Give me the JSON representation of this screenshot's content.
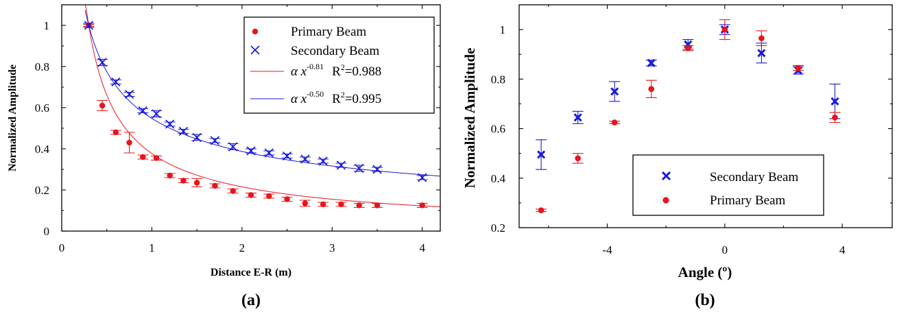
{
  "chart_data": [
    {
      "panel": "(a)",
      "type": "scatter",
      "xlabel": "Distance E-R (m)",
      "ylabel": "Normalized Amplitude",
      "xlim": [
        0,
        4.2
      ],
      "ylim": [
        0,
        1.1
      ],
      "xticks": [
        0,
        1,
        2,
        3,
        4
      ],
      "yticks": [
        0,
        0.2,
        0.4,
        0.6,
        0.8,
        1
      ],
      "legend_position": "top-right",
      "grid": false,
      "series": [
        {
          "name": "Primary Beam",
          "marker": "dot",
          "color": "#e8141b",
          "x": [
            0.3,
            0.45,
            0.6,
            0.75,
            0.9,
            1.05,
            1.2,
            1.35,
            1.5,
            1.7,
            1.9,
            2.1,
            2.3,
            2.5,
            2.7,
            2.9,
            3.1,
            3.3,
            3.5,
            4.0
          ],
          "y": [
            1.0,
            0.61,
            0.48,
            0.43,
            0.36,
            0.355,
            0.27,
            0.245,
            0.235,
            0.22,
            0.195,
            0.175,
            0.17,
            0.155,
            0.135,
            0.13,
            0.13,
            0.125,
            0.125,
            0.125
          ],
          "yerr": [
            0.005,
            0.025,
            0.01,
            0.05,
            0.01,
            0.01,
            0.01,
            0.01,
            0.02,
            0.01,
            0.01,
            0.01,
            0.01,
            0.01,
            0.015,
            0.01,
            0.01,
            0.01,
            0.01,
            0.01
          ]
        },
        {
          "name": "Secondary Beam",
          "marker": "x",
          "color": "#1a1ad6",
          "x": [
            0.3,
            0.45,
            0.6,
            0.75,
            0.9,
            1.05,
            1.2,
            1.35,
            1.5,
            1.7,
            1.9,
            2.1,
            2.3,
            2.5,
            2.7,
            2.9,
            3.1,
            3.3,
            3.5,
            4.0
          ],
          "y": [
            1.0,
            0.82,
            0.725,
            0.665,
            0.585,
            0.57,
            0.52,
            0.485,
            0.455,
            0.44,
            0.41,
            0.39,
            0.38,
            0.365,
            0.35,
            0.34,
            0.32,
            0.305,
            0.3,
            0.26
          ],
          "yerr": [
            0.01,
            0.015,
            0.01,
            0.01,
            0.01,
            0.015,
            0.01,
            0.01,
            0.015,
            0.01,
            0.015,
            0.01,
            0.01,
            0.01,
            0.01,
            0.01,
            0.01,
            0.015,
            0.01,
            0.01
          ]
        },
        {
          "name": "Primary fit",
          "type": "line",
          "color": "#e8141b",
          "model": "power",
          "exponent": -0.81,
          "anchor_x": 0.3,
          "anchor_y": 1.0,
          "legend_label": "α x",
          "legend_exp": "-0.81",
          "r2_label": "R",
          "r2_sup": "2",
          "r2_value": "=0.988"
        },
        {
          "name": "Secondary fit",
          "type": "line",
          "color": "#1a1ad6",
          "model": "power",
          "exponent": -0.5,
          "anchor_x": 0.3,
          "anchor_y": 1.0,
          "legend_label": "α x",
          "legend_exp": "-0.50",
          "r2_label": "R",
          "r2_sup": "2",
          "r2_value": "=0.995"
        }
      ]
    },
    {
      "panel": "(b)",
      "type": "scatter",
      "xlabel": "Angle (º)",
      "ylabel": "Normalized Amplitude",
      "xlim": [
        -7,
        5.7
      ],
      "ylim": [
        0.2,
        1.1
      ],
      "xticks": [
        -4,
        0,
        4
      ],
      "yticks": [
        0.2,
        0.4,
        0.6,
        0.8,
        1
      ],
      "legend_position": "bottom-right",
      "grid": false,
      "series": [
        {
          "name": "Secondary Beam",
          "marker": "x",
          "color": "#1a1ad6",
          "x": [
            -6.25,
            -5.0,
            -3.75,
            -2.5,
            -1.25,
            0.0,
            1.25,
            2.5,
            3.75
          ],
          "y": [
            0.495,
            0.645,
            0.75,
            0.865,
            0.94,
            1.0,
            0.905,
            0.835,
            0.71
          ],
          "yerr": [
            0.06,
            0.025,
            0.04,
            0.012,
            0.02,
            0.02,
            0.04,
            0.015,
            0.07
          ]
        },
        {
          "name": "Primary Beam",
          "marker": "dot",
          "color": "#e8141b",
          "x": [
            -6.25,
            -5.0,
            -3.75,
            -2.5,
            -1.25,
            0.0,
            1.25,
            2.5,
            3.75
          ],
          "y": [
            0.27,
            0.48,
            0.625,
            0.76,
            0.925,
            1.0,
            0.965,
            0.845,
            0.645
          ],
          "yerr": [
            0.005,
            0.02,
            0.005,
            0.035,
            0.01,
            0.04,
            0.03,
            0.01,
            0.02
          ]
        }
      ]
    }
  ]
}
